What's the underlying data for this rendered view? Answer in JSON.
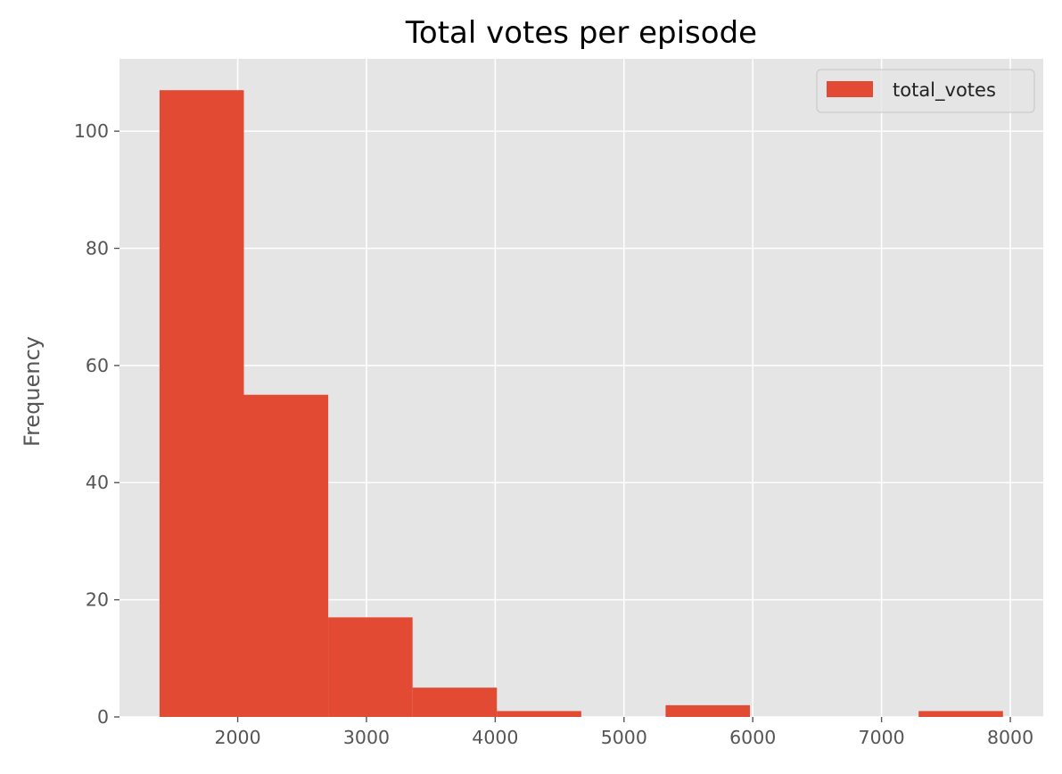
{
  "chart_data": {
    "type": "bar",
    "title": "Total votes per episode",
    "xlabel": "",
    "ylabel": "Frequency",
    "xlim": [
      1082,
      8256
    ],
    "ylim": [
      0,
      112.35
    ],
    "x_ticks": [
      2000,
      3000,
      4000,
      5000,
      6000,
      7000,
      8000
    ],
    "y_ticks": [
      0,
      20,
      40,
      60,
      80,
      100
    ],
    "grid": true,
    "legend": {
      "position": "top-right",
      "entries": [
        "total_votes"
      ]
    },
    "series": [
      {
        "name": "total_votes",
        "color": "#E24A33",
        "bins": [
          {
            "x0": 1393,
            "x1": 2048,
            "count": 107
          },
          {
            "x0": 2048,
            "x1": 2703,
            "count": 55
          },
          {
            "x0": 2703,
            "x1": 3358,
            "count": 17
          },
          {
            "x0": 3358,
            "x1": 4013,
            "count": 5
          },
          {
            "x0": 4013,
            "x1": 4668,
            "count": 1
          },
          {
            "x0": 4668,
            "x1": 5323,
            "count": 0
          },
          {
            "x0": 5323,
            "x1": 5978,
            "count": 2
          },
          {
            "x0": 5978,
            "x1": 6633,
            "count": 0
          },
          {
            "x0": 6633,
            "x1": 7288,
            "count": 0
          },
          {
            "x0": 7288,
            "x1": 7943,
            "count": 1
          }
        ]
      }
    ],
    "colors": {
      "plot_background": "#E5E5E5",
      "grid": "#FFFFFF",
      "tick_text": "#555555"
    }
  }
}
